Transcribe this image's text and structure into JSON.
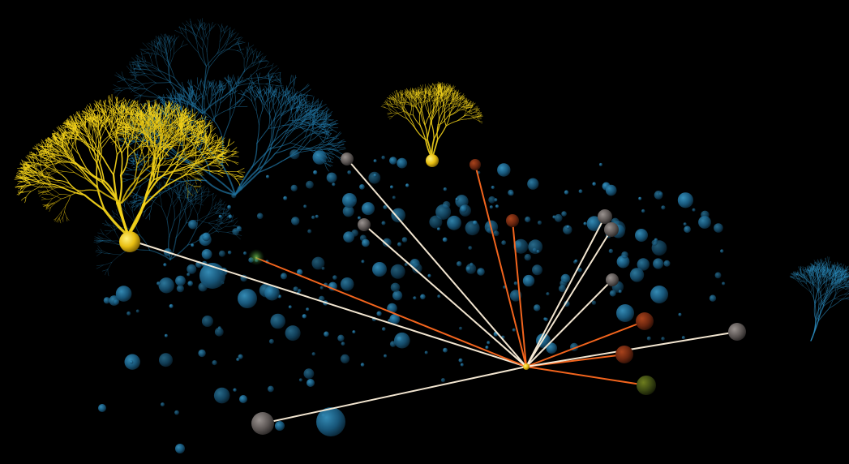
{
  "scene": {
    "background_color": "#000000",
    "neuron_colors": {
      "highlighted": "#f2d21a",
      "dimmed": "#1f6f9b"
    },
    "connection_colors": {
      "excitatory": "#fff2dc",
      "inhibitory": "#ff6a1f"
    },
    "soma_colors": {
      "grey": "#6a6563",
      "dark_red": "#6e2a12",
      "olive": "#3d4a12",
      "blue": "#1d6d99",
      "yellow": "#f0c815"
    }
  }
}
